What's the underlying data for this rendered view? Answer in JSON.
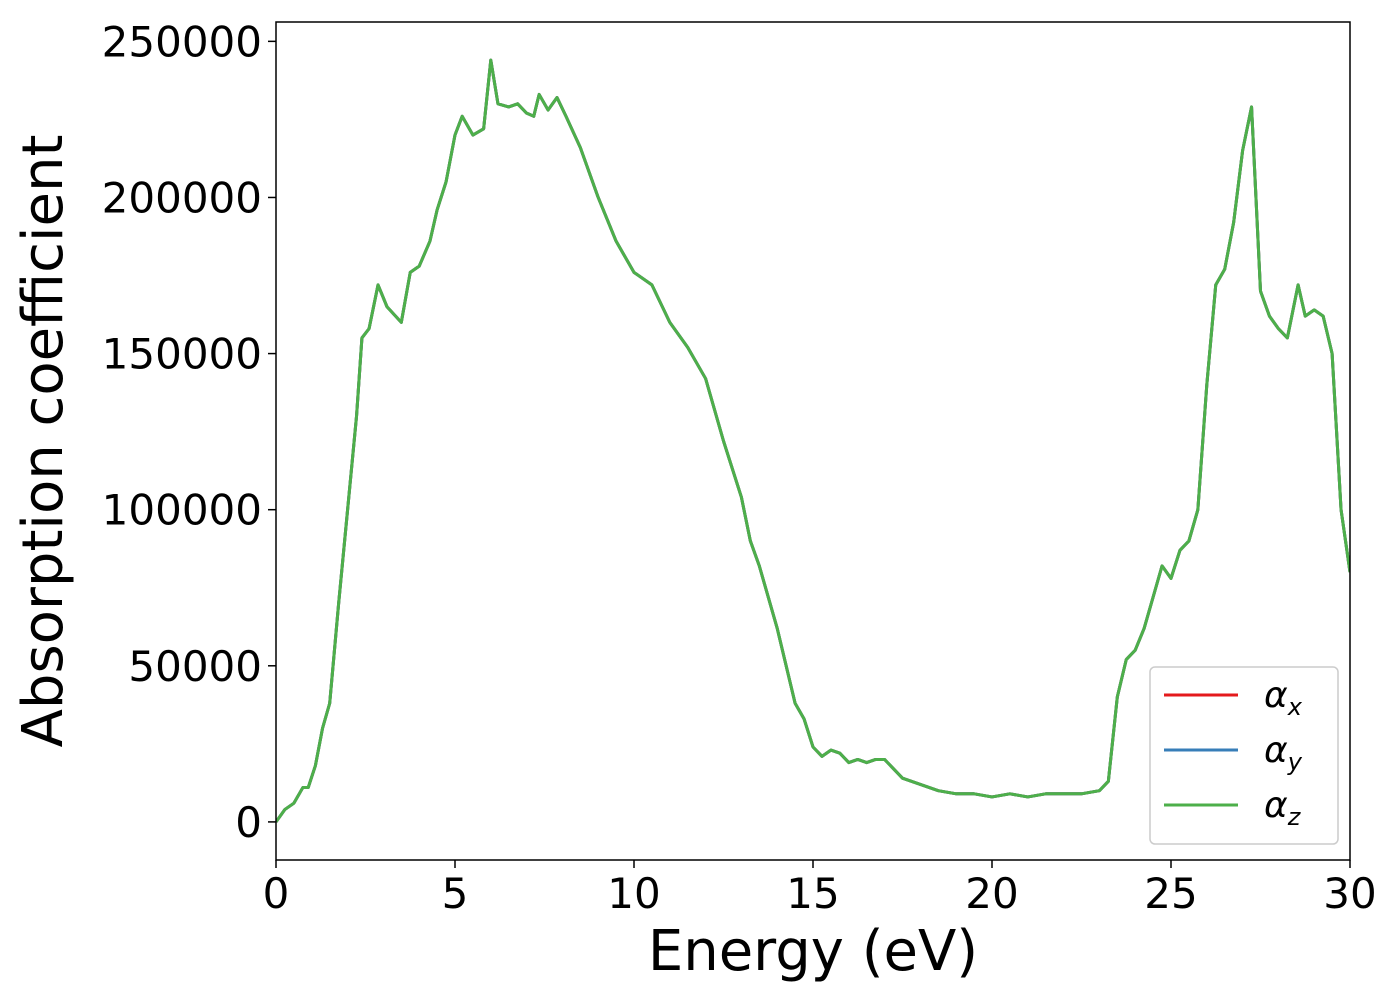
{
  "chart_data": {
    "type": "line",
    "xlabel": "Energy (eV)",
    "ylabel": "Absorption coefficient",
    "x": [
      0,
      0.25,
      0.5,
      0.75,
      0.9,
      1.1,
      1.3,
      1.5,
      1.75,
      2.0,
      2.25,
      2.4,
      2.6,
      2.85,
      3.1,
      3.5,
      3.75,
      4.0,
      4.3,
      4.5,
      4.75,
      5.0,
      5.2,
      5.5,
      5.8,
      6.0,
      6.2,
      6.5,
      6.75,
      7.0,
      7.2,
      7.35,
      7.6,
      7.85,
      8.1,
      8.5,
      9.0,
      9.5,
      10.0,
      10.5,
      11.0,
      11.5,
      12.0,
      12.5,
      13.0,
      13.25,
      13.5,
      14.0,
      14.5,
      14.75,
      15.0,
      15.25,
      15.5,
      15.75,
      16.0,
      16.25,
      16.5,
      16.75,
      17.0,
      17.25,
      17.5,
      18.0,
      18.5,
      19.0,
      19.5,
      20.0,
      20.5,
      21.0,
      21.5,
      22.0,
      22.5,
      23.0,
      23.25,
      23.5,
      23.75,
      24.0,
      24.25,
      24.5,
      24.75,
      25.0,
      25.25,
      25.5,
      25.75,
      26.0,
      26.25,
      26.5,
      26.75,
      27.0,
      27.25,
      27.5,
      27.75,
      28.0,
      28.25,
      28.55,
      28.75,
      29.0,
      29.25,
      29.5,
      29.75,
      30.0
    ],
    "series": [
      {
        "name": "αx",
        "color": "#e41a1c",
        "values": [
          0,
          4000,
          6000,
          11000,
          11000,
          18000,
          30000,
          38000,
          70000,
          100000,
          130000,
          155000,
          158000,
          172000,
          165000,
          160000,
          176000,
          178000,
          186000,
          196000,
          205000,
          220000,
          226000,
          220000,
          222000,
          244000,
          230000,
          229000,
          230000,
          227000,
          226000,
          233000,
          228000,
          232000,
          226000,
          216000,
          200000,
          186000,
          176000,
          172000,
          160000,
          152000,
          142000,
          122000,
          104000,
          90000,
          82000,
          62000,
          38000,
          33000,
          24000,
          21000,
          23000,
          22000,
          19000,
          20000,
          19000,
          20000,
          20000,
          17000,
          14000,
          12000,
          10000,
          9000,
          9000,
          8000,
          9000,
          8000,
          9000,
          9000,
          9000,
          10000,
          13000,
          40000,
          52000,
          55000,
          62000,
          72000,
          82000,
          78000,
          87000,
          90000,
          100000,
          140000,
          172000,
          177000,
          192000,
          215000,
          229000,
          170000,
          162000,
          158000,
          155000,
          172000,
          162000,
          164000,
          162000,
          150000,
          100000,
          80000
        ]
      },
      {
        "name": "αy",
        "color": "#377eb8",
        "values": [
          0,
          4000,
          6000,
          11000,
          11000,
          18000,
          30000,
          38000,
          70000,
          100000,
          130000,
          155000,
          158000,
          172000,
          165000,
          160000,
          176000,
          178000,
          186000,
          196000,
          205000,
          220000,
          226000,
          220000,
          222000,
          244000,
          230000,
          229000,
          230000,
          227000,
          226000,
          233000,
          228000,
          232000,
          226000,
          216000,
          200000,
          186000,
          176000,
          172000,
          160000,
          152000,
          142000,
          122000,
          104000,
          90000,
          82000,
          62000,
          38000,
          33000,
          24000,
          21000,
          23000,
          22000,
          19000,
          20000,
          19000,
          20000,
          20000,
          17000,
          14000,
          12000,
          10000,
          9000,
          9000,
          8000,
          9000,
          8000,
          9000,
          9000,
          9000,
          10000,
          13000,
          40000,
          52000,
          55000,
          62000,
          72000,
          82000,
          78000,
          87000,
          90000,
          100000,
          140000,
          172000,
          177000,
          192000,
          215000,
          229000,
          170000,
          162000,
          158000,
          155000,
          172000,
          162000,
          164000,
          162000,
          150000,
          100000,
          80000
        ]
      },
      {
        "name": "αz",
        "color": "#4daf4a",
        "values": [
          0,
          4000,
          6000,
          11000,
          11000,
          18000,
          30000,
          38000,
          70000,
          100000,
          130000,
          155000,
          158000,
          172000,
          165000,
          160000,
          176000,
          178000,
          186000,
          196000,
          205000,
          220000,
          226000,
          220000,
          222000,
          244000,
          230000,
          229000,
          230000,
          227000,
          226000,
          233000,
          228000,
          232000,
          226000,
          216000,
          200000,
          186000,
          176000,
          172000,
          160000,
          152000,
          142000,
          122000,
          104000,
          90000,
          82000,
          62000,
          38000,
          33000,
          24000,
          21000,
          23000,
          22000,
          19000,
          20000,
          19000,
          20000,
          20000,
          17000,
          14000,
          12000,
          10000,
          9000,
          9000,
          8000,
          9000,
          8000,
          9000,
          9000,
          9000,
          10000,
          13000,
          40000,
          52000,
          55000,
          62000,
          72000,
          82000,
          78000,
          87000,
          90000,
          100000,
          140000,
          172000,
          177000,
          192000,
          215000,
          229000,
          170000,
          162000,
          158000,
          155000,
          172000,
          162000,
          164000,
          162000,
          150000,
          100000,
          80000
        ]
      }
    ],
    "xlim": [
      0,
      30
    ],
    "xticks": [
      0,
      5,
      10,
      15,
      20,
      25,
      30
    ],
    "ylim": [
      -12200,
      256200
    ],
    "yticks": [
      0,
      50000,
      100000,
      150000,
      200000,
      250000
    ],
    "legend": "lower right"
  }
}
